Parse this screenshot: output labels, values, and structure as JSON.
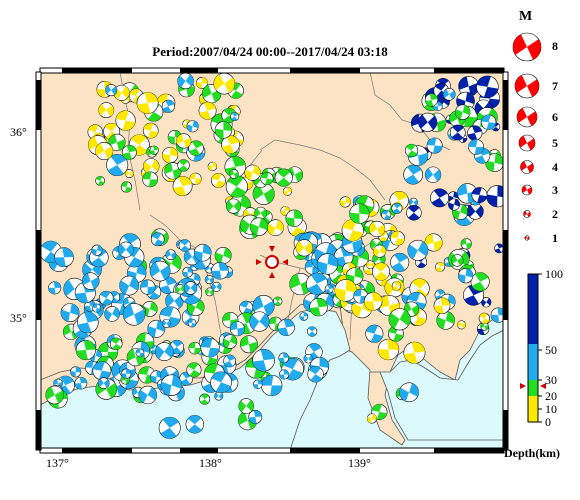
{
  "title": "Period:2007/04/24 00:00--2017/04/24 03:18",
  "magnitude_legend": {
    "header": "M",
    "items": [
      {
        "label": "8",
        "magnitude": 8
      },
      {
        "label": "7",
        "magnitude": 7
      },
      {
        "label": "6",
        "magnitude": 6
      },
      {
        "label": "5",
        "magnitude": 5
      },
      {
        "label": "4",
        "magnitude": 4
      },
      {
        "label": "3",
        "magnitude": 3
      },
      {
        "label": "2",
        "magnitude": 2
      },
      {
        "label": "1",
        "magnitude": 1
      }
    ]
  },
  "depth_scale": {
    "title": "Depth(km)",
    "ticks": [
      "100",
      "50",
      "30",
      "20",
      "10",
      "0"
    ],
    "bands": [
      {
        "from": 0,
        "to": 10,
        "color": "#ffe800"
      },
      {
        "from": 10,
        "to": 20,
        "color": "#ffe800"
      },
      {
        "from": 20,
        "to": 30,
        "color": "#22dd22"
      },
      {
        "from": 30,
        "to": 50,
        "color": "#22aaee"
      },
      {
        "from": 50,
        "to": 100,
        "color": "#0022aa"
      }
    ],
    "marker_depth": 25
  },
  "axes": {
    "longitude_labels": [
      "137°",
      "138°",
      "139°"
    ],
    "latitude_labels": [
      "36°",
      "35°"
    ]
  },
  "colors": {
    "land": "#fbe3c4",
    "sea": "#dcfafb",
    "compression": "#ff0000",
    "epicenter_marker": "#cc0000"
  },
  "epicenter_icon": "red-star-marker"
}
